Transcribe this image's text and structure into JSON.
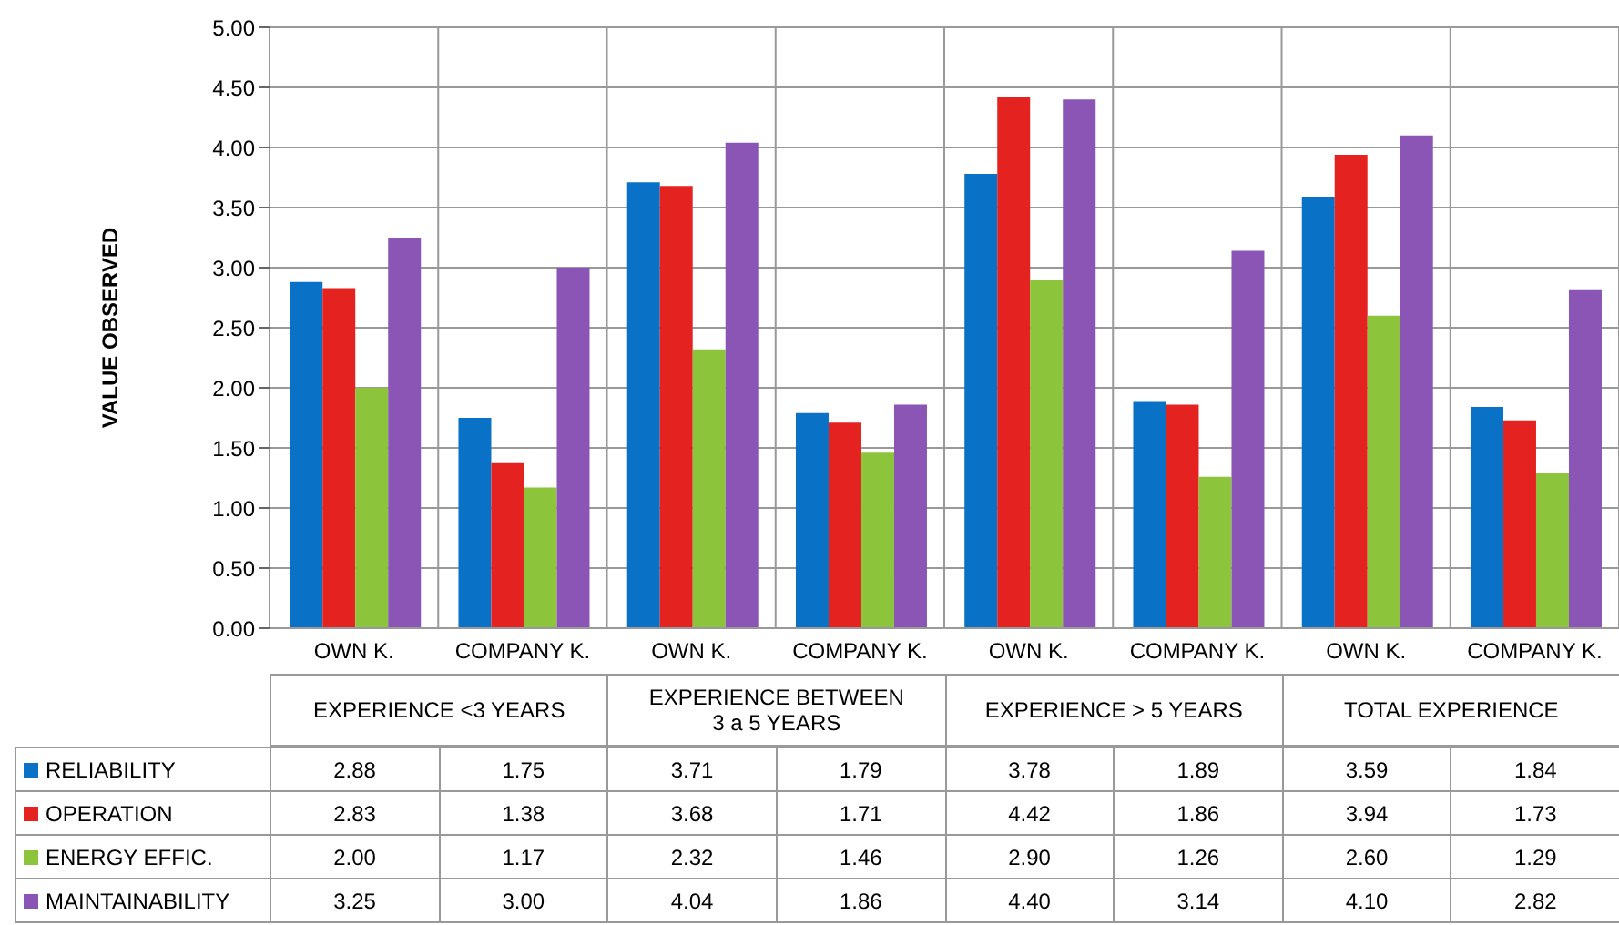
{
  "chart_data": {
    "type": "bar",
    "ylabel": "VALUE OBSERVED",
    "categories": [
      "OWN K.",
      "COMPANY K.",
      "OWN K.",
      "COMPANY K.",
      "OWN K.",
      "COMPANY K.",
      "OWN K.",
      "COMPANY K."
    ],
    "annotations": [
      "EXPERIENCE <3 YEARS",
      "EXPERIENCE  BETWEEN 3 a 5 YEARS",
      "EXPERIENCE > 5 YEARS",
      "TOTAL EXPERIENCE"
    ],
    "series": [
      {
        "name": "RELIABILITY",
        "color": "#0a72c6",
        "values": [
          2.88,
          1.75,
          3.71,
          1.79,
          3.78,
          1.89,
          3.59,
          1.84
        ],
        "value_labels": [
          "2.88",
          "1.75",
          "3.71",
          "1.79",
          "3.78",
          "1.89",
          "3.59",
          "1.84"
        ]
      },
      {
        "name": "OPERATION",
        "color": "#e42320",
        "values": [
          2.83,
          1.38,
          3.68,
          1.71,
          4.42,
          1.86,
          3.94,
          1.73
        ],
        "value_labels": [
          "2.83",
          "1.38",
          "3.68",
          "1.71",
          "4.42",
          "1.86",
          "3.94",
          "1.73"
        ]
      },
      {
        "name": "ENERGY EFFIC.",
        "color": "#8cc43c",
        "values": [
          2.0,
          1.17,
          2.32,
          1.46,
          2.9,
          1.26,
          2.6,
          1.29
        ],
        "value_labels": [
          "2.00",
          "1.17",
          "2.32",
          "1.46",
          "2.90",
          "1.26",
          "2.60",
          "1.29"
        ]
      },
      {
        "name": "MAINTAINABILITY",
        "color": "#8a55b5",
        "values": [
          3.25,
          3.0,
          4.04,
          1.86,
          4.4,
          3.14,
          4.1,
          2.82
        ],
        "value_labels": [
          "3.25",
          "3.00",
          "4.04",
          "1.86",
          "4.40",
          "3.14",
          "4.10",
          "2.82"
        ]
      }
    ],
    "ylim": [
      0,
      5
    ],
    "yticks": [
      {
        "value": 0,
        "label": "0.00"
      },
      {
        "value": 0.5,
        "label": "0.50"
      },
      {
        "value": 1,
        "label": "1.00"
      },
      {
        "value": 1.5,
        "label": "1.50"
      },
      {
        "value": 2,
        "label": "2.00"
      },
      {
        "value": 2.5,
        "label": "2.50"
      },
      {
        "value": 3,
        "label": "3.00"
      },
      {
        "value": 3.5,
        "label": "3.50"
      },
      {
        "value": 4,
        "label": "4.00"
      },
      {
        "value": 4.5,
        "label": "4.50"
      },
      {
        "value": 5,
        "label": "5.00"
      }
    ],
    "grid": true,
    "legend": "bottom"
  }
}
